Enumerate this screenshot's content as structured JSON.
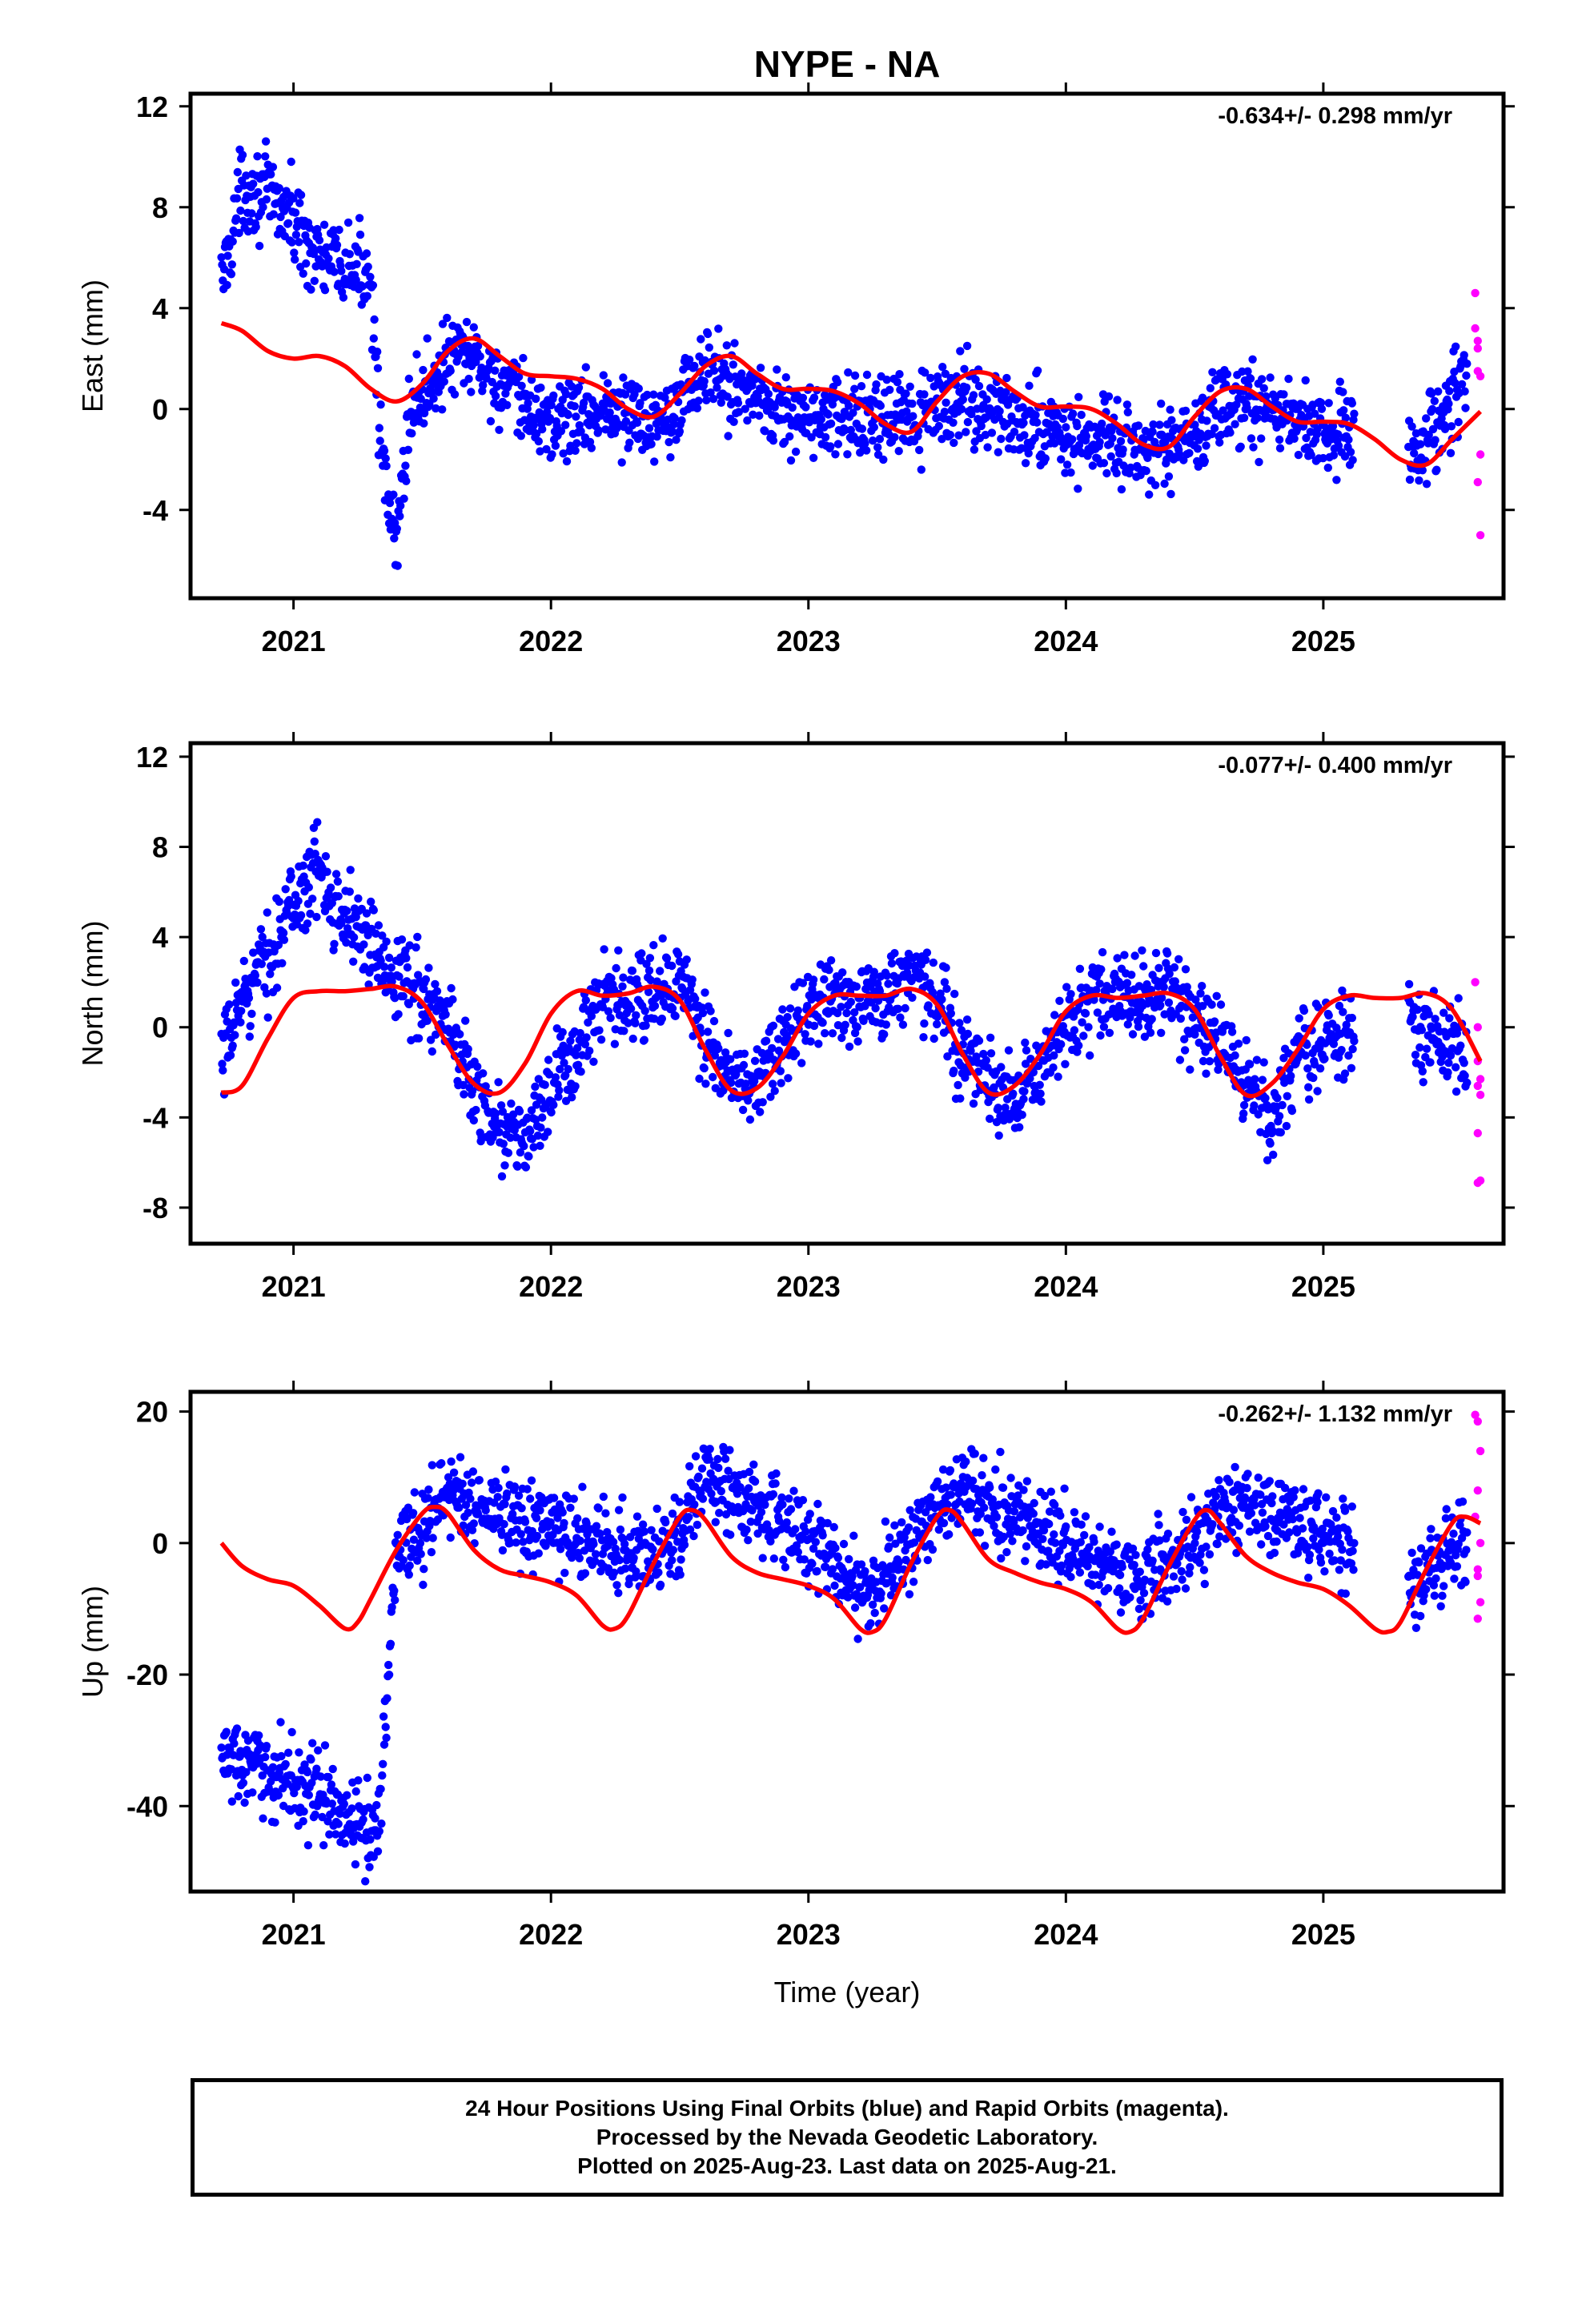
{
  "chart_data": [
    {
      "type": "scatter",
      "title": "NYPE - NA",
      "ylabel": "East (mm)",
      "xlabel": "",
      "rate": "-0.634+/- 0.298 mm/yr",
      "xlim": [
        2020.6,
        2025.7
      ],
      "ylim": [
        -7.5,
        12.5
      ],
      "yticks": [
        -4,
        0,
        4,
        8,
        12
      ],
      "xticks": [
        2021,
        2022,
        2023,
        2024,
        2025
      ],
      "xtick_labels": [
        "2021",
        "2022",
        "2023",
        "2024",
        "2025"
      ],
      "series": [
        {
          "color": "#0000ff",
          "style": "points",
          "x_range": [
            2020.72,
            2025.56
          ],
          "x": [
            2020.72,
            2020.8,
            2020.9,
            2021.0,
            2021.1,
            2021.2,
            2021.3,
            2021.35,
            2021.4,
            2021.45,
            2021.5,
            2021.6,
            2021.7,
            2021.8,
            2021.9,
            2022.0,
            2022.2,
            2022.4,
            2022.6,
            2022.8,
            2023.0,
            2023.2,
            2023.4,
            2023.6,
            2023.8,
            2024.0,
            2024.2,
            2024.4,
            2024.6,
            2024.8,
            2025.0,
            2025.1,
            2025.35,
            2025.45,
            2025.56
          ],
          "y": [
            5.0,
            8.8,
            8.5,
            7.5,
            6.0,
            5.5,
            5.5,
            -3.0,
            -5.5,
            0.0,
            0.5,
            2.0,
            2.0,
            1.0,
            0.0,
            -0.5,
            0.0,
            -0.5,
            1.5,
            0.5,
            -0.5,
            -0.3,
            -0.5,
            0.5,
            -0.5,
            -1.0,
            -1.5,
            -1.8,
            0.0,
            0.0,
            -1.0,
            -0.8,
            -1.5,
            -0.5,
            1.5
          ],
          "spread": 1.0
        },
        {
          "color": "#ff00ff",
          "style": "points",
          "x": [
            2025.59,
            2025.59,
            2025.6,
            2025.6,
            2025.6,
            2025.61,
            2025.61,
            2025.6,
            2025.61
          ],
          "y": [
            4.6,
            3.2,
            2.7,
            2.4,
            1.5,
            1.3,
            -1.8,
            -2.9,
            -5.0
          ]
        },
        {
          "color": "#ff0000",
          "style": "line",
          "x": [
            2020.72,
            2020.8,
            2020.9,
            2021.0,
            2021.1,
            2021.2,
            2021.3,
            2021.4,
            2021.5,
            2021.6,
            2021.7,
            2021.8,
            2021.9,
            2022.0,
            2022.1,
            2022.2,
            2022.3,
            2022.4,
            2022.5,
            2022.6,
            2022.7,
            2022.8,
            2022.9,
            2023.0,
            2023.1,
            2023.2,
            2023.3,
            2023.4,
            2023.5,
            2023.6,
            2023.7,
            2023.8,
            2023.9,
            2024.0,
            2024.1,
            2024.2,
            2024.3,
            2024.4,
            2024.5,
            2024.6,
            2024.7,
            2024.8,
            2024.9,
            2025.0,
            2025.1,
            2025.2,
            2025.3,
            2025.4,
            2025.5,
            2025.61
          ],
          "y": [
            3.4,
            3.1,
            2.3,
            2.0,
            2.1,
            1.7,
            0.8,
            0.3,
            1.0,
            2.3,
            2.8,
            2.1,
            1.4,
            1.3,
            1.2,
            0.8,
            0.0,
            -0.3,
            0.6,
            1.7,
            2.1,
            1.4,
            0.8,
            0.8,
            0.7,
            0.2,
            -0.6,
            -0.9,
            0.3,
            1.3,
            1.4,
            0.7,
            0.1,
            0.1,
            0.0,
            -0.6,
            -1.4,
            -1.5,
            -0.3,
            0.7,
            0.8,
            0.1,
            -0.5,
            -0.5,
            -0.6,
            -1.2,
            -2.0,
            -2.2,
            -1.2,
            -0.1
          ]
        }
      ]
    },
    {
      "type": "scatter",
      "title": "",
      "ylabel": "North (mm)",
      "xlabel": "",
      "rate": "-0.077+/- 0.400 mm/yr",
      "xlim": [
        2020.6,
        2025.7
      ],
      "ylim": [
        -9.6,
        12.6
      ],
      "yticks": [
        -8,
        -4,
        0,
        4,
        8,
        12
      ],
      "xticks": [
        2021,
        2022,
        2023,
        2024,
        2025
      ],
      "xtick_labels": [
        "2021",
        "2022",
        "2023",
        "2024",
        "2025"
      ],
      "series": [
        {
          "color": "#0000ff",
          "style": "points",
          "x_range": [
            2020.72,
            2025.56
          ],
          "x": [
            2020.72,
            2020.8,
            2020.9,
            2021.0,
            2021.1,
            2021.2,
            2021.3,
            2021.4,
            2021.5,
            2021.6,
            2021.7,
            2021.8,
            2021.9,
            2022.0,
            2022.1,
            2022.2,
            2022.3,
            2022.4,
            2022.5,
            2022.6,
            2022.7,
            2022.8,
            2022.9,
            2023.0,
            2023.1,
            2023.2,
            2023.3,
            2023.4,
            2023.5,
            2023.6,
            2023.7,
            2023.8,
            2023.9,
            2024.0,
            2024.1,
            2024.2,
            2024.3,
            2024.4,
            2024.5,
            2024.6,
            2024.7,
            2024.8,
            2024.9,
            2025.0,
            2025.35,
            2025.45,
            2025.56
          ],
          "y": [
            -2.0,
            1.5,
            3.0,
            5.5,
            7.0,
            5.0,
            3.5,
            2.5,
            1.5,
            0.0,
            -2.5,
            -4.5,
            -5.0,
            -3.0,
            -1.0,
            1.0,
            1.0,
            1.5,
            2.0,
            -0.5,
            -2.5,
            -2.5,
            -1.0,
            1.0,
            1.5,
            1.0,
            1.5,
            2.5,
            1.0,
            -1.0,
            -2.5,
            -3.5,
            -2.0,
            0.0,
            1.0,
            1.5,
            1.5,
            1.5,
            0.5,
            -1.0,
            -2.5,
            -4.0,
            -1.0,
            -0.5,
            0.0,
            -0.5,
            -1.0
          ],
          "spread": 1.2
        },
        {
          "color": "#ff00ff",
          "style": "points",
          "x": [
            2025.59,
            2025.6,
            2025.6,
            2025.61,
            2025.6,
            2025.61,
            2025.6,
            2025.61,
            2025.6
          ],
          "y": [
            2.0,
            0.0,
            -1.5,
            -2.3,
            -2.6,
            -3.0,
            -4.7,
            -6.8,
            -6.9
          ]
        },
        {
          "color": "#ff0000",
          "style": "line",
          "x": [
            2020.72,
            2020.8,
            2020.9,
            2021.0,
            2021.1,
            2021.2,
            2021.3,
            2021.4,
            2021.5,
            2021.6,
            2021.7,
            2021.8,
            2021.9,
            2022.0,
            2022.1,
            2022.2,
            2022.3,
            2022.4,
            2022.5,
            2022.6,
            2022.7,
            2022.8,
            2022.9,
            2023.0,
            2023.1,
            2023.2,
            2023.3,
            2023.4,
            2023.5,
            2023.6,
            2023.7,
            2023.8,
            2023.9,
            2024.0,
            2024.1,
            2024.2,
            2024.3,
            2024.4,
            2024.5,
            2024.6,
            2024.7,
            2024.8,
            2024.9,
            2025.0,
            2025.1,
            2025.2,
            2025.3,
            2025.4,
            2025.5,
            2025.61
          ],
          "y": [
            -2.9,
            -2.6,
            -0.5,
            1.3,
            1.6,
            1.6,
            1.7,
            1.8,
            1.1,
            -0.8,
            -2.5,
            -2.9,
            -1.6,
            0.6,
            1.6,
            1.4,
            1.5,
            1.8,
            1.2,
            -1.0,
            -2.8,
            -2.7,
            -1.3,
            0.6,
            1.4,
            1.4,
            1.4,
            1.7,
            1.0,
            -1.2,
            -2.9,
            -2.6,
            -1.2,
            0.7,
            1.4,
            1.3,
            1.4,
            1.5,
            0.8,
            -1.3,
            -3.0,
            -2.5,
            -1.0,
            0.8,
            1.4,
            1.3,
            1.3,
            1.5,
            0.8,
            -1.5
          ]
        }
      ]
    },
    {
      "type": "scatter",
      "title": "",
      "ylabel": "Up (mm)",
      "xlabel": "Time (year)",
      "rate": "-0.262+/- 1.132 mm/yr",
      "xlim": [
        2020.6,
        2025.7
      ],
      "ylim": [
        -53,
        23
      ],
      "yticks": [
        -40,
        -20,
        0,
        20
      ],
      "xticks": [
        2021,
        2022,
        2023,
        2024,
        2025
      ],
      "xtick_labels": [
        "2021",
        "2022",
        "2023",
        "2024",
        "2025"
      ],
      "series": [
        {
          "color": "#0000ff",
          "style": "points",
          "x_range": [
            2020.72,
            2025.56
          ],
          "x": [
            2020.72,
            2020.8,
            2020.9,
            2021.0,
            2021.1,
            2021.2,
            2021.3,
            2021.33,
            2021.4,
            2021.5,
            2021.6,
            2021.7,
            2021.8,
            2021.9,
            2022.0,
            2022.1,
            2022.2,
            2022.3,
            2022.4,
            2022.5,
            2022.6,
            2022.7,
            2022.8,
            2022.9,
            2023.0,
            2023.1,
            2023.2,
            2023.3,
            2023.4,
            2023.5,
            2023.6,
            2023.7,
            2023.8,
            2023.9,
            2024.0,
            2024.1,
            2024.2,
            2024.3,
            2024.4,
            2024.5,
            2024.6,
            2024.7,
            2024.8,
            2024.9,
            2025.0,
            2025.05,
            2025.35,
            2025.45,
            2025.56
          ],
          "y": [
            -32,
            -34,
            -35,
            -36,
            -38,
            -42,
            -44,
            -43,
            0,
            2,
            8,
            6,
            4,
            3,
            2,
            1,
            0,
            -2,
            -1,
            1,
            10,
            8,
            5,
            3,
            0,
            -3,
            -8,
            -5,
            0,
            5,
            8,
            6,
            4,
            2,
            0,
            -2,
            -4,
            -6,
            -3,
            0,
            4,
            6,
            5,
            3,
            2,
            0,
            -8,
            -2,
            0
          ],
          "spread": 4.0
        },
        {
          "color": "#ff00ff",
          "style": "points",
          "x": [
            2025.59,
            2025.6,
            2025.61,
            2025.6,
            2025.59,
            2025.61,
            2025.6,
            2025.6,
            2025.61,
            2025.6
          ],
          "y": [
            19.5,
            18.5,
            14.0,
            8.0,
            4.0,
            0.0,
            -4.0,
            -5.0,
            -9.0,
            -11.5
          ]
        },
        {
          "color": "#ff0000",
          "style": "line",
          "x": [
            2020.72,
            2020.8,
            2020.9,
            2021.0,
            2021.1,
            2021.2,
            2021.25,
            2021.3,
            2021.4,
            2021.5,
            2021.55,
            2021.6,
            2021.7,
            2021.8,
            2021.9,
            2022.0,
            2022.1,
            2022.2,
            2022.25,
            2022.3,
            2022.4,
            2022.5,
            2022.55,
            2022.6,
            2022.7,
            2022.8,
            2022.9,
            2023.0,
            2023.1,
            2023.2,
            2023.25,
            2023.3,
            2023.4,
            2023.5,
            2023.55,
            2023.6,
            2023.7,
            2023.8,
            2023.9,
            2024.0,
            2024.1,
            2024.2,
            2024.25,
            2024.3,
            2024.4,
            2024.5,
            2024.55,
            2024.6,
            2024.7,
            2024.8,
            2024.9,
            2025.0,
            2025.1,
            2025.2,
            2025.25,
            2025.3,
            2025.4,
            2025.5,
            2025.55,
            2025.61
          ],
          "y": [
            0.0,
            -3.5,
            -5.5,
            -6.5,
            -9.5,
            -13.0,
            -12.0,
            -8.5,
            -1.0,
            4.5,
            5.5,
            4.5,
            -1.0,
            -4.0,
            -5.0,
            -6.0,
            -8.0,
            -12.5,
            -13.0,
            -11.0,
            -3.0,
            4.0,
            5.0,
            3.5,
            -2.0,
            -4.5,
            -5.5,
            -6.5,
            -8.5,
            -13.0,
            -13.5,
            -11.5,
            -3.0,
            4.0,
            5.0,
            3.0,
            -2.5,
            -4.5,
            -6.0,
            -7.0,
            -9.0,
            -13.0,
            -13.5,
            -11.5,
            -3.5,
            3.5,
            5.0,
            3.0,
            -2.0,
            -4.5,
            -6.0,
            -7.0,
            -9.5,
            -13.0,
            -13.5,
            -12.0,
            -4.0,
            3.0,
            4.0,
            3.0
          ]
        }
      ]
    }
  ],
  "footer": {
    "line1": "24 Hour Positions Using Final Orbits (blue) and Rapid Orbits (magenta).",
    "line2": "Processed by the Nevada Geodetic Laboratory.",
    "line3": "Plotted on 2025-Aug-23. Last data on 2025-Aug-21."
  }
}
